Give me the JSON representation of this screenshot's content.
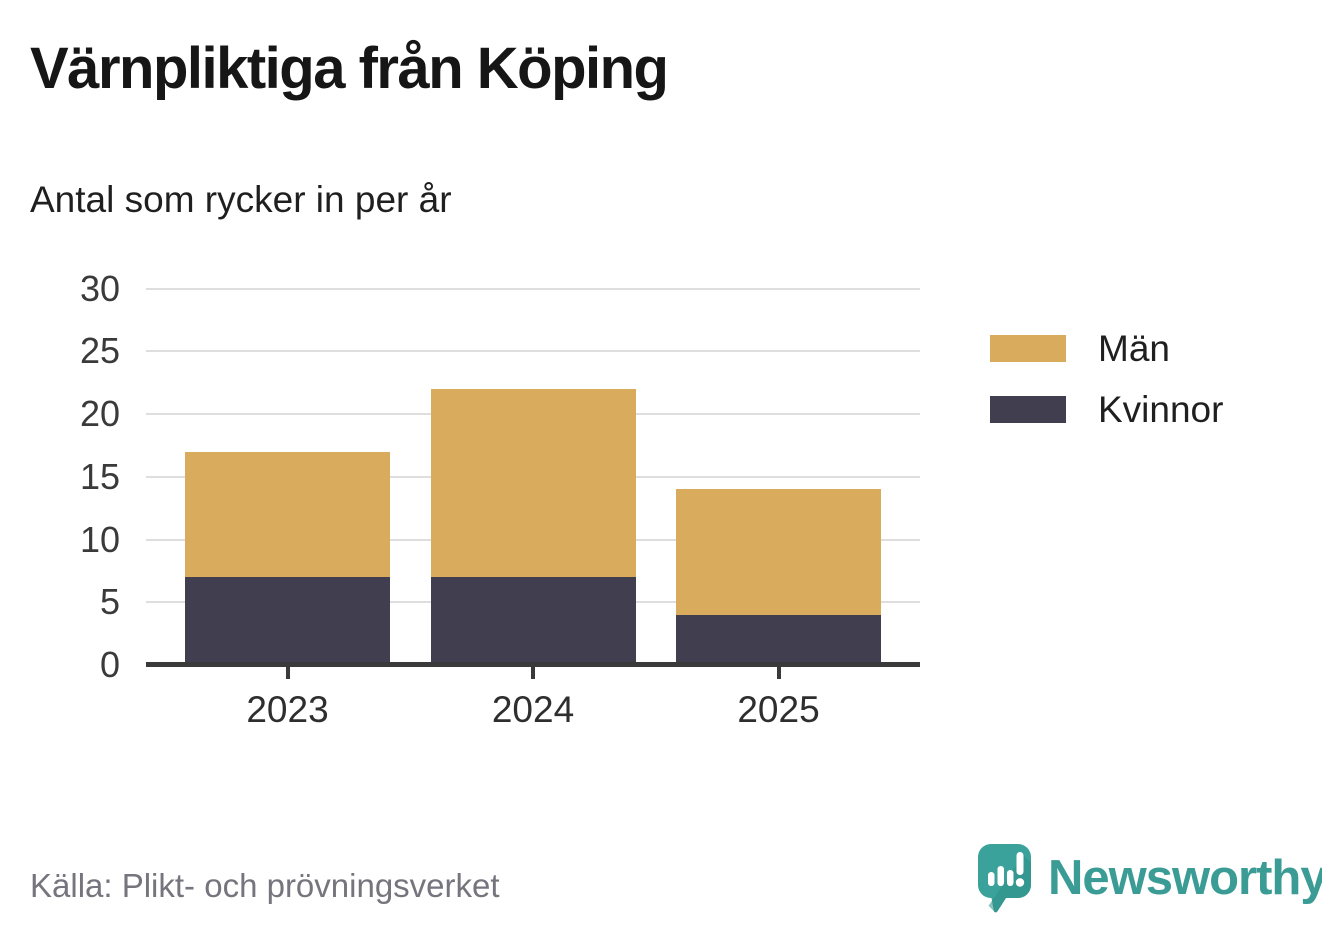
{
  "header": {
    "title": "Värnpliktiga från Köping",
    "subtitle": "Antal som rycker in per år"
  },
  "chart_data": {
    "type": "bar",
    "stacked": true,
    "title": "Värnpliktiga från Köping",
    "subtitle": "Antal som rycker in per år",
    "categories": [
      "2023",
      "2024",
      "2025"
    ],
    "series": [
      {
        "name": "Män",
        "color": "#d9ab5c",
        "values": [
          10,
          15,
          10
        ]
      },
      {
        "name": "Kvinnor",
        "color": "#413f4f",
        "values": [
          7,
          7,
          4
        ]
      }
    ],
    "stack_order_bottom_to_top": [
      "Kvinnor",
      "Män"
    ],
    "totals": [
      17,
      22,
      14
    ],
    "xlabel": "",
    "ylabel": "",
    "ylim": [
      0,
      30
    ],
    "yticks": [
      0,
      5,
      10,
      15,
      20,
      25,
      30
    ],
    "grid": true,
    "legend_position": "right",
    "axis_color": "#3a3a3a",
    "grid_color": "#dedede"
  },
  "legend": {
    "items": [
      {
        "label": "Män",
        "color": "#d9ab5c"
      },
      {
        "label": "Kvinnor",
        "color": "#413f4f"
      }
    ]
  },
  "footer": {
    "source": "Källa: Plikt- och prövningsverket",
    "brand": "Newsworthy",
    "brand_color": "#3a9c94"
  },
  "icons": {
    "brand_icon": "newsworthy-speech-bubble-chart-icon"
  }
}
